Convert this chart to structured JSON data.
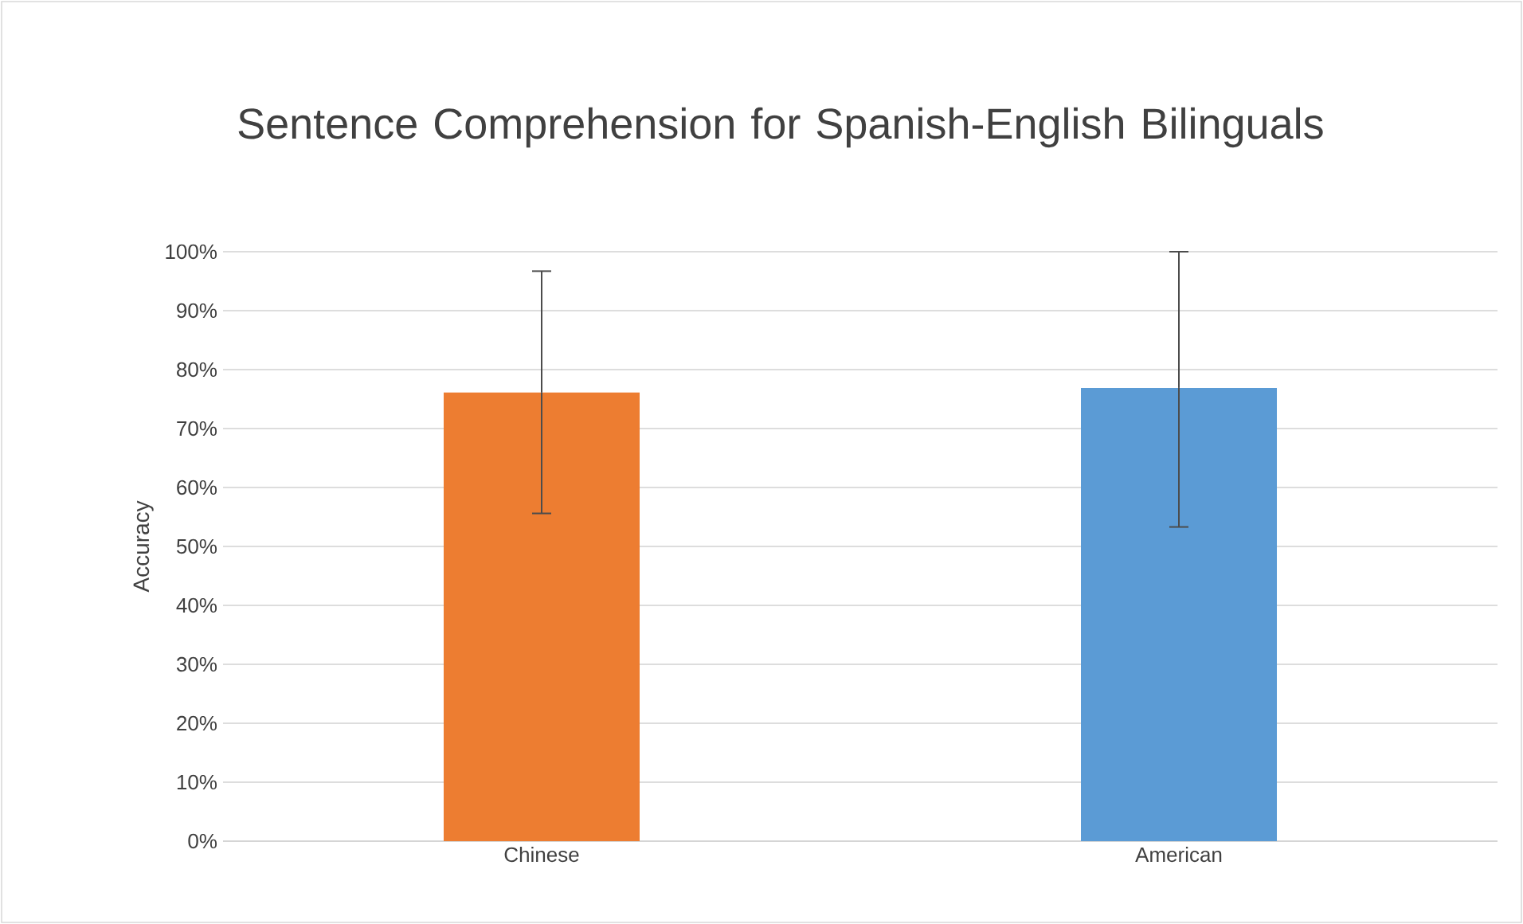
{
  "chart_data": {
    "type": "bar",
    "title": "Sentence Comprehension for Spanish-English Bilinguals",
    "ylabel": "Accuracy",
    "categories": [
      "Chinese",
      "American"
    ],
    "values": [
      76.1,
      76.9
    ],
    "colors": [
      "#ed7d31",
      "#5b9bd5"
    ],
    "errors": [
      [
        55.6,
        96.7
      ],
      [
        53.3,
        100
      ]
    ],
    "ylim": [
      0,
      100
    ],
    "yticks": [
      {
        "value": 0,
        "label": "0%"
      },
      {
        "value": 10,
        "label": "10%"
      },
      {
        "value": 20,
        "label": "20%"
      },
      {
        "value": 30,
        "label": "30%"
      },
      {
        "value": 40,
        "label": "40%"
      },
      {
        "value": 50,
        "label": "50%"
      },
      {
        "value": 60,
        "label": "60%"
      },
      {
        "value": 70,
        "label": "70%"
      },
      {
        "value": 80,
        "label": "80%"
      },
      {
        "value": 90,
        "label": "90%"
      },
      {
        "value": 100,
        "label": "100%"
      }
    ],
    "grid": "y"
  }
}
